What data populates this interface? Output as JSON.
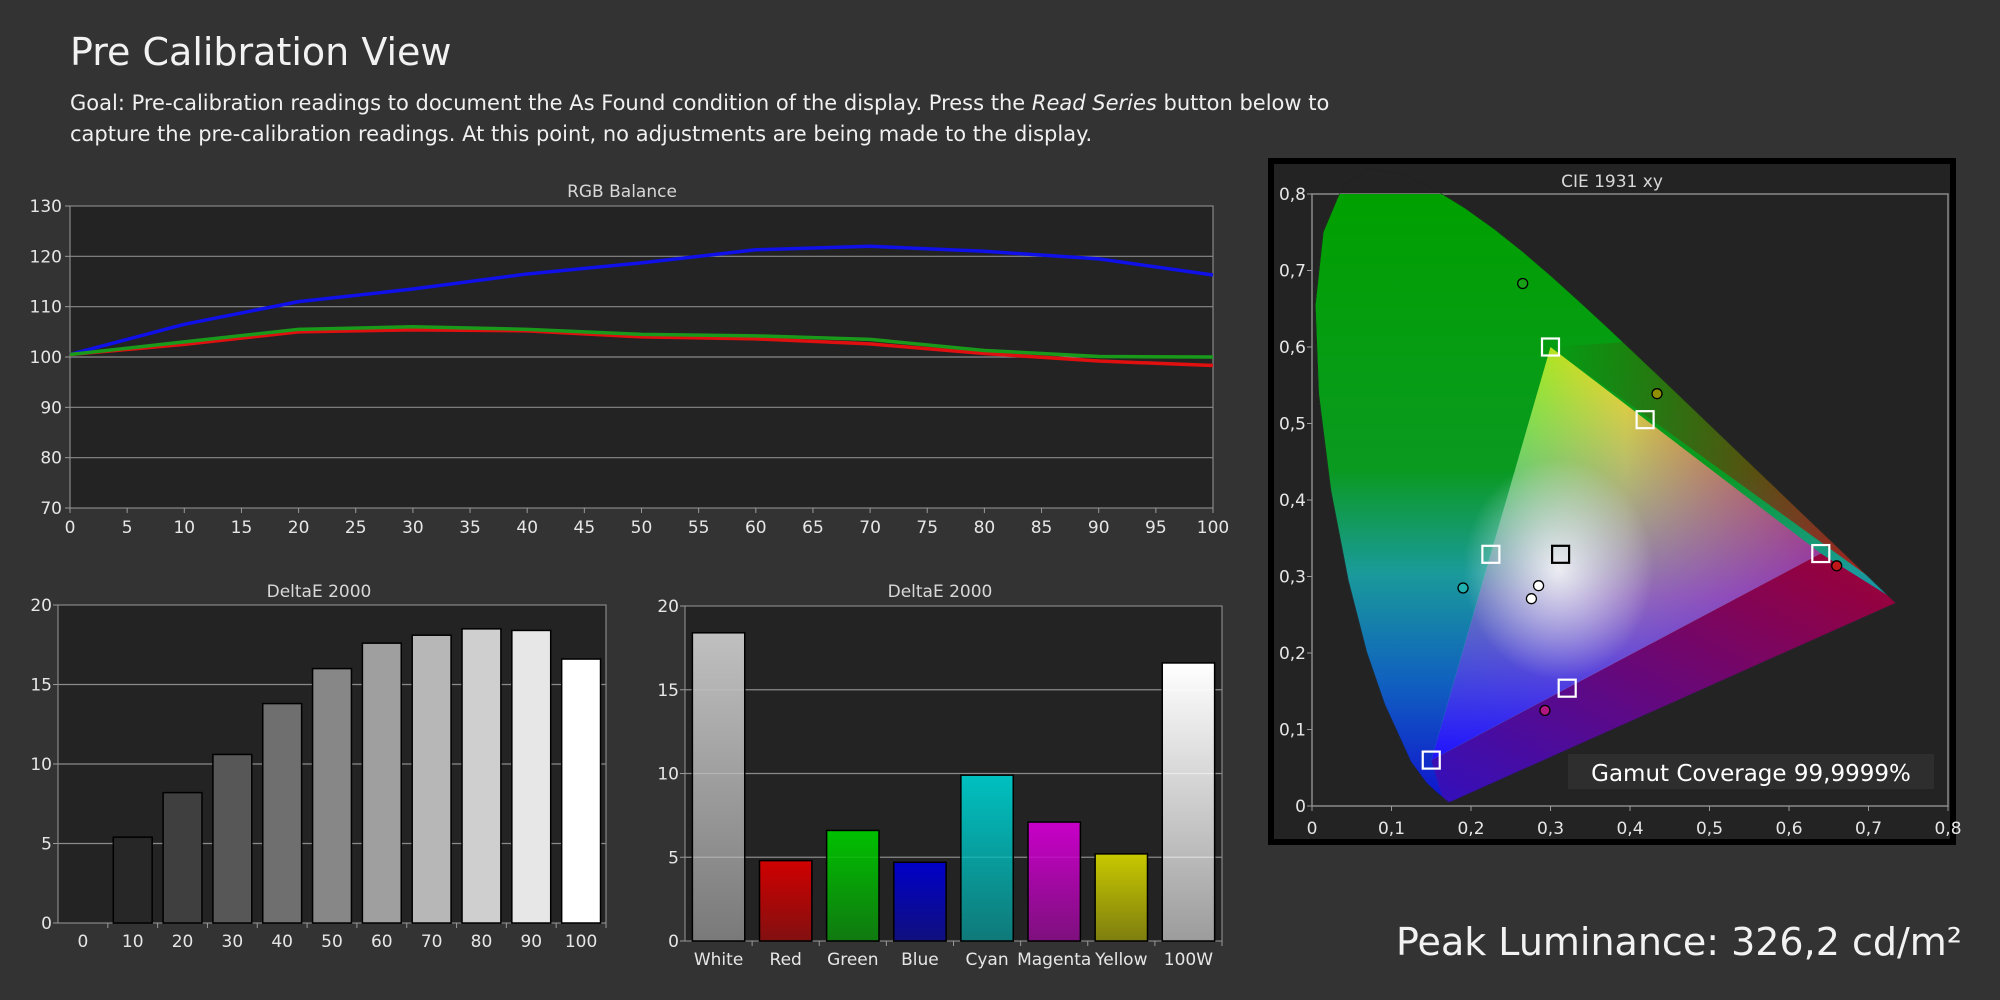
{
  "page": {
    "title": "Pre Calibration View",
    "goal_prefix": "Goal: Pre-calibration readings to document the As Found condition of the display. Press the ",
    "goal_emphasis": "Read Series",
    "goal_suffix": " button below to capture the pre-calibration readings. At this point, no adjustments are being made to the display.",
    "peak_luminance": "Peak Luminance: 326,2 cd/m²"
  },
  "colors": {
    "background": "#333333",
    "plot_bg": "#232323",
    "red": "#e01010",
    "green": "#1a9a1a",
    "blue": "#1010e8"
  },
  "chart_data": [
    {
      "id": "rgb-balance",
      "type": "line",
      "title": "RGB Balance",
      "xlabel": "",
      "ylabel": "",
      "xlim": [
        0,
        100
      ],
      "ylim": [
        70,
        130
      ],
      "x_ticks": [
        0,
        5,
        10,
        15,
        20,
        25,
        30,
        35,
        40,
        45,
        50,
        55,
        60,
        65,
        70,
        75,
        80,
        85,
        90,
        95,
        100
      ],
      "y_ticks": [
        70,
        80,
        90,
        100,
        110,
        120,
        130
      ],
      "grid": true,
      "x": [
        0,
        10,
        20,
        30,
        40,
        50,
        60,
        70,
        80,
        90,
        100
      ],
      "series": [
        {
          "color": "#1010e8",
          "values": [
            100.5,
            106.5,
            111,
            113.5,
            116.5,
            118.7,
            121.3,
            122,
            121,
            119.5,
            116.3
          ]
        },
        {
          "color": "#e01010",
          "values": [
            100.5,
            102.5,
            105,
            105.4,
            105.2,
            104,
            103.6,
            102.6,
            100.7,
            99.2,
            98.3
          ]
        },
        {
          "color": "#1a9a1a",
          "values": [
            100.5,
            103,
            105.5,
            106,
            105.5,
            104.5,
            104.2,
            103.5,
            101.3,
            100.1,
            100
          ]
        }
      ]
    },
    {
      "id": "deltae-grayscale",
      "type": "bar",
      "title": "DeltaE 2000",
      "categories": [
        "0",
        "10",
        "20",
        "30",
        "40",
        "50",
        "60",
        "70",
        "80",
        "90",
        "100"
      ],
      "values": [
        0,
        5.4,
        8.2,
        10.6,
        13.8,
        16.0,
        17.6,
        18.1,
        18.5,
        18.4,
        16.6
      ],
      "ylim": [
        0,
        20
      ],
      "y_ticks": [
        0,
        5,
        10,
        15,
        20
      ],
      "grid": true
    },
    {
      "id": "deltae-colors",
      "type": "bar",
      "title": "DeltaE 2000",
      "categories": [
        "White",
        "Red",
        "Green",
        "Blue",
        "Cyan",
        "Magenta",
        "Yellow",
        "100W"
      ],
      "values": [
        18.4,
        4.8,
        6.6,
        4.7,
        9.9,
        7.1,
        5.2,
        16.6
      ],
      "bar_colors": [
        "#c0c0c0",
        "#d00000",
        "#00c000",
        "#0000c8",
        "#00c0c0",
        "#c800c8",
        "#c8c800",
        "#ffffff"
      ],
      "ylim": [
        0,
        20
      ],
      "y_ticks": [
        0,
        5,
        10,
        15,
        20
      ],
      "grid": true
    },
    {
      "id": "cie-1931",
      "type": "scatter",
      "title": "CIE 1931 xy",
      "xlim": [
        0,
        0.8
      ],
      "ylim": [
        0,
        0.8
      ],
      "x_ticks": [
        0,
        0.1,
        0.2,
        0.3,
        0.4,
        0.5,
        0.6,
        0.7,
        0.8
      ],
      "y_ticks": [
        0,
        0.1,
        0.2,
        0.3,
        0.4,
        0.5,
        0.6,
        0.7,
        0.8
      ],
      "x_tick_labels": [
        "0",
        "0,1",
        "0,2",
        "0,3",
        "0,4",
        "0,5",
        "0,6",
        "0,7",
        "0,8"
      ],
      "y_tick_labels": [
        "0",
        "0,1",
        "0,2",
        "0,3",
        "0,4",
        "0,5",
        "0,6",
        "0,7",
        "0,8"
      ],
      "targets": [
        {
          "x": 0.64,
          "y": 0.33
        },
        {
          "x": 0.3,
          "y": 0.6
        },
        {
          "x": 0.15,
          "y": 0.06
        },
        {
          "x": 0.225,
          "y": 0.329
        },
        {
          "x": 0.321,
          "y": 0.154
        },
        {
          "x": 0.419,
          "y": 0.505
        },
        {
          "x": 0.3127,
          "y": 0.329,
          "color": "#000000"
        }
      ],
      "measured": [
        {
          "x": 0.66,
          "y": 0.314,
          "color": "#c01818"
        },
        {
          "x": 0.265,
          "y": 0.683,
          "color": "#18a018"
        },
        {
          "x": 0.19,
          "y": 0.285,
          "color": "#20b0b0"
        },
        {
          "x": 0.293,
          "y": 0.125,
          "color": "#b01880"
        },
        {
          "x": 0.434,
          "y": 0.539,
          "color": "#909000"
        },
        {
          "x": 0.285,
          "y": 0.288,
          "color": "#ffffff"
        },
        {
          "x": 0.276,
          "y": 0.271,
          "color": "#ffffff"
        }
      ],
      "gamut_coverage": "Gamut Coverage 99,9999%"
    }
  ]
}
